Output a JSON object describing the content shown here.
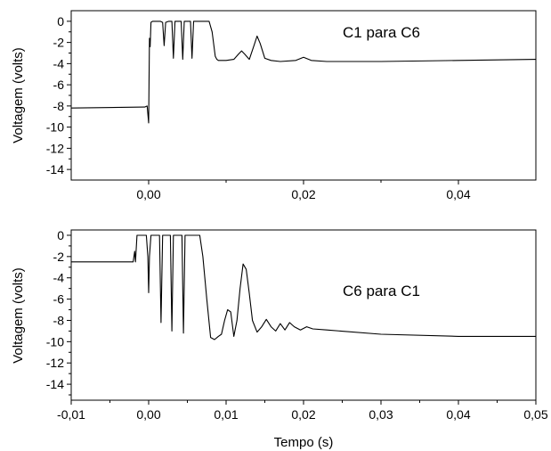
{
  "figure": {
    "x_title": "Tempo (s)"
  },
  "chart_data": [
    {
      "type": "line",
      "annotation": "C1 para C6",
      "ylabel": "Voltagem (volts)",
      "xlabel": "",
      "xlim": [
        -0.01,
        0.05
      ],
      "ylim": [
        -15,
        1
      ],
      "x_ticks": [
        0.0,
        0.02,
        0.04
      ],
      "x_tick_labels": [
        "0,00",
        "0,02",
        "0,04"
      ],
      "y_ticks": [
        0,
        -2,
        -4,
        -6,
        -8,
        -10,
        -12,
        -14
      ],
      "y_tick_labels": [
        "0",
        "-2",
        "-4",
        "-6",
        "-8",
        "-10",
        "-12",
        "-14"
      ],
      "grid": false,
      "legend": "none",
      "color": "#000000",
      "series": [
        {
          "x": [
            -0.01,
            -0.0005,
            -0.0002,
            0.0,
            0.0001,
            0.0002,
            0.0003,
            0.0005,
            0.0007,
            0.0012,
            0.0015,
            0.0018,
            0.002,
            0.0022,
            0.0026,
            0.003,
            0.0032,
            0.0034,
            0.0038,
            0.0042,
            0.0044,
            0.0046,
            0.005,
            0.0054,
            0.0056,
            0.0058,
            0.0062,
            0.007,
            0.0078,
            0.0082,
            0.0086,
            0.0088,
            0.009,
            0.0094,
            0.01,
            0.011,
            0.0116,
            0.012,
            0.0124,
            0.013,
            0.0136,
            0.014,
            0.0144,
            0.015,
            0.0158,
            0.017,
            0.019,
            0.02,
            0.021,
            0.023,
            0.03,
            0.04,
            0.05
          ],
          "y": [
            -8.2,
            -8.1,
            -8.0,
            -9.6,
            -1.6,
            -2.4,
            -0.1,
            0.0,
            0.0,
            0.0,
            0.0,
            -0.1,
            -2.3,
            -0.1,
            0.0,
            0.0,
            -3.5,
            0.0,
            0.0,
            0.0,
            -3.6,
            0.0,
            0.0,
            0.0,
            -3.5,
            0.0,
            0.0,
            0.0,
            0.0,
            -1.0,
            -3.3,
            -3.6,
            -3.7,
            -3.7,
            -3.7,
            -3.6,
            -3.1,
            -2.8,
            -3.1,
            -3.6,
            -2.3,
            -1.4,
            -2.1,
            -3.5,
            -3.7,
            -3.8,
            -3.7,
            -3.4,
            -3.7,
            -3.8,
            -3.8,
            -3.7,
            -3.6
          ]
        }
      ]
    },
    {
      "type": "line",
      "annotation": "C6 para C1",
      "ylabel": "Voltagem (volts)",
      "xlabel": "Tempo (s)",
      "xlim": [
        -0.01,
        0.05
      ],
      "ylim": [
        -15.5,
        0.5
      ],
      "x_ticks": [
        -0.01,
        0.0,
        0.01,
        0.02,
        0.03,
        0.04,
        0.05
      ],
      "x_tick_labels": [
        "-0,01",
        "0,00",
        "0,01",
        "0,02",
        "0,03",
        "0,04",
        "0,05"
      ],
      "y_ticks": [
        0,
        -2,
        -4,
        -6,
        -8,
        -10,
        -12,
        -14
      ],
      "y_tick_labels": [
        "0",
        "-2",
        "-4",
        "-6",
        "-8",
        "-10",
        "-12",
        "-14"
      ],
      "grid": false,
      "legend": "none",
      "color": "#000000",
      "series": [
        {
          "x": [
            -0.01,
            -0.006,
            -0.002,
            -0.0018,
            -0.0017,
            -0.0015,
            -0.0012,
            -0.0008,
            -0.0003,
            -0.0001,
            0.0,
            0.0001,
            0.0003,
            0.0006,
            0.001,
            0.0014,
            0.0016,
            0.0018,
            0.002,
            0.0023,
            0.0028,
            0.003,
            0.0032,
            0.0036,
            0.004,
            0.0043,
            0.0045,
            0.0047,
            0.005,
            0.006,
            0.0066,
            0.007,
            0.0075,
            0.008,
            0.0085,
            0.009,
            0.0094,
            0.0098,
            0.0102,
            0.0106,
            0.011,
            0.0114,
            0.0118,
            0.0122,
            0.0126,
            0.013,
            0.0134,
            0.014,
            0.0146,
            0.0152,
            0.0158,
            0.0164,
            0.017,
            0.0176,
            0.0182,
            0.0188,
            0.0196,
            0.0204,
            0.0212,
            0.023,
            0.03,
            0.04,
            0.05
          ],
          "y": [
            -2.5,
            -2.5,
            -2.5,
            -1.5,
            -2.5,
            0.0,
            0.0,
            0.0,
            0.0,
            -2.0,
            -5.4,
            -2.0,
            0.0,
            0.0,
            0.0,
            0.0,
            -8.2,
            0.0,
            0.0,
            0.0,
            0.0,
            -9.0,
            0.0,
            0.0,
            0.0,
            0.0,
            -9.2,
            0.0,
            0.0,
            0.0,
            0.0,
            -2.0,
            -6.0,
            -9.6,
            -9.8,
            -9.5,
            -9.3,
            -8.0,
            -7.0,
            -7.2,
            -9.5,
            -8.0,
            -5.0,
            -2.7,
            -3.2,
            -5.5,
            -8.0,
            -9.1,
            -8.6,
            -7.9,
            -8.6,
            -9.0,
            -8.3,
            -8.9,
            -8.2,
            -8.6,
            -8.9,
            -8.6,
            -8.8,
            -8.9,
            -9.3,
            -9.5,
            -9.5
          ]
        }
      ]
    }
  ]
}
